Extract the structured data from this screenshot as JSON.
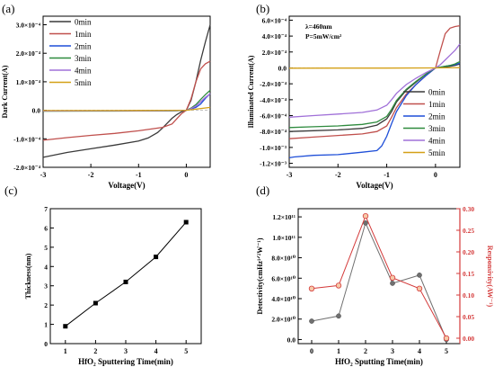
{
  "figure": {
    "panels": [
      {
        "id": "a",
        "panel_label": "(a)",
        "chart_data": {
          "type": "line",
          "title": "",
          "xlabel": "Voltage(V)",
          "ylabel": "Dark Current(A)",
          "xlim": [
            -3,
            0.5
          ],
          "ylim": [
            -0.0002,
            0.00033
          ],
          "x_ticks": [
            -3,
            -2,
            -1,
            0
          ],
          "x_tick_labels": [
            "-3",
            "-2",
            "-1",
            "0"
          ],
          "y_ticks": [
            -0.0002,
            -0.0001,
            0,
            0.0001,
            0.0002,
            0.0003
          ],
          "y_tick_labels": [
            "-2.0×10⁻⁴",
            "-1.0×10⁻⁴",
            "0.0",
            "1.0×10⁻⁴",
            "2.0×10⁻⁴",
            "3.0×10⁻⁴"
          ],
          "legend": {
            "placement": "top-center",
            "entries": [
              "0min",
              "1min",
              "2min",
              "3min",
              "4min",
              "5min"
            ]
          },
          "grid": false,
          "series": [
            {
              "name": "0min",
              "color": "#3a3a3a",
              "x": [
                -3,
                -2.5,
                -2,
                -1.5,
                -1,
                -0.8,
                -0.6,
                -0.5,
                -0.4,
                -0.3,
                -0.2,
                -0.1,
                0,
                0.1,
                0.2,
                0.3,
                0.4,
                0.5
              ],
              "y": [
                -0.000165,
                -0.000148,
                -0.000135,
                -0.000122,
                -0.000108,
                -9.7e-05,
                -7.8e-05,
                -6.2e-05,
                -4.5e-05,
                -2.8e-05,
                -1.5e-05,
                -5e-06,
                0,
                3.5e-05,
                0.0001,
                0.000175,
                0.00024,
                0.0003
              ]
            },
            {
              "name": "1min",
              "color": "#c0504d",
              "x": [
                -3,
                -2.5,
                -2,
                -1.5,
                -1,
                -0.5,
                -0.3,
                -0.2,
                -0.1,
                0,
                0.1,
                0.2,
                0.3,
                0.4,
                0.5
              ],
              "y": [
                -0.000105,
                -9.6e-05,
                -8.8e-05,
                -8.1e-05,
                -7.2e-05,
                -6e-05,
                -4.8e-05,
                -3e-05,
                -1.2e-05,
                0,
                4e-05,
                0.0001,
                0.000145,
                0.000163,
                0.000172
              ]
            },
            {
              "name": "2min",
              "color": "#1f4fd8",
              "x": [
                -3,
                -2,
                -1,
                -0.5,
                -0.2,
                0,
                0.1,
                0.2,
                0.3,
                0.4,
                0.5
              ],
              "y": [
                -2.5e-06,
                -2.2e-06,
                -2e-06,
                -1.8e-06,
                -1.2e-06,
                0,
                5e-06,
                1e-05,
                2.2e-05,
                4.2e-05,
                5.8e-05
              ]
            },
            {
              "name": "3min",
              "color": "#2e8b3e",
              "x": [
                -3,
                -2,
                -1,
                -0.5,
                -0.2,
                0,
                0.1,
                0.2,
                0.3,
                0.4,
                0.5
              ],
              "y": [
                -3e-06,
                -2.8e-06,
                -2.5e-06,
                -2e-06,
                -1.5e-06,
                0,
                8e-06,
                2e-05,
                3.8e-05,
                5.5e-05,
                7e-05
              ]
            },
            {
              "name": "4min",
              "color": "#a070d8",
              "x": [
                -3,
                -2,
                -1,
                -0.5,
                -0.2,
                0,
                0.1,
                0.2,
                0.3,
                0.4,
                0.5
              ],
              "y": [
                -2.5e-06,
                -2e-06,
                -1.8e-06,
                -1.5e-06,
                -1e-06,
                0,
                6e-06,
                1.5e-05,
                3e-05,
                4.5e-05,
                5.8e-05
              ]
            },
            {
              "name": "5min",
              "color": "#d4a017",
              "x": [
                -3,
                -2,
                -1,
                0,
                0.25,
                0.5
              ],
              "y": [
                -1e-06,
                -8e-07,
                -5e-07,
                0,
                5e-06,
                1e-05
              ]
            }
          ]
        }
      },
      {
        "id": "b",
        "panel_label": "(b)",
        "annotations": [
          "λ=460nm",
          "P=5mW/cm²"
        ],
        "chart_data": {
          "type": "line",
          "title": "",
          "xlabel": "Voltage(V)",
          "ylabel": "Illuminated Current(A)",
          "xlim": [
            -3,
            0.5
          ],
          "ylim": [
            -0.00125,
            0.00065
          ],
          "x_ticks": [
            -3,
            -2,
            -1,
            0
          ],
          "x_tick_labels": [
            "-3",
            "-2",
            "-1",
            "0"
          ],
          "y_ticks": [
            -0.0012,
            -0.001,
            -0.0008,
            -0.0006,
            -0.0004,
            -0.0002,
            0,
            0.0002,
            0.0004,
            0.0006
          ],
          "y_tick_labels": [
            "-1.2×10⁻³",
            "-1.0×10⁻³",
            "-8.0×10⁻⁴",
            "-6.0×10⁻⁴",
            "-4.0×10⁻⁴",
            "-2.0×10⁻⁴",
            "0.0",
            "2.0×10⁻⁴",
            "4.0×10⁻⁴",
            "6.0×10⁻⁴"
          ],
          "legend": {
            "placement": "bottom-right",
            "entries": [
              "0min",
              "1min",
              "2min",
              "3min",
              "4min",
              "5min"
            ]
          },
          "grid": false,
          "series": [
            {
              "name": "0min",
              "color": "#3a3a3a",
              "x": [
                -3,
                -2.5,
                -2,
                -1.5,
                -1.2,
                -1,
                -0.9,
                -0.8,
                -0.6,
                -0.4,
                -0.2,
                0,
                0.1,
                0.2,
                0.3,
                0.4,
                0.5
              ],
              "y": [
                -0.0008,
                -0.00079,
                -0.00078,
                -0.00076,
                -0.00072,
                -0.00064,
                -0.00055,
                -0.00043,
                -0.00028,
                -0.00018,
                -8e-05,
                0,
                5e-06,
                1e-05,
                2e-05,
                3e-05,
                5e-05
              ]
            },
            {
              "name": "1min",
              "color": "#c0504d",
              "x": [
                -3,
                -2.5,
                -2,
                -1.5,
                -1.2,
                -1,
                -0.9,
                -0.8,
                -0.6,
                -0.4,
                -0.2,
                0,
                0.1,
                0.2,
                0.3,
                0.4,
                0.5
              ],
              "y": [
                -0.00089,
                -0.00087,
                -0.00085,
                -0.00083,
                -0.0008,
                -0.00073,
                -0.00062,
                -0.0005,
                -0.00033,
                -0.00021,
                -0.0001,
                0,
                0.00022,
                0.00043,
                0.0005,
                0.00052,
                0.00053
              ]
            },
            {
              "name": "2min",
              "color": "#1f4fd8",
              "x": [
                -3,
                -2.9,
                -2.5,
                -2,
                -1.5,
                -1.2,
                -1.1,
                -1,
                -0.9,
                -0.8,
                -0.6,
                -0.4,
                -0.2,
                0,
                0.1,
                0.2,
                0.3,
                0.4,
                0.5
              ],
              "y": [
                -0.00113,
                -0.00112,
                -0.0011,
                -0.00109,
                -0.00106,
                -0.00104,
                -0.00098,
                -0.00086,
                -0.0007,
                -0.00055,
                -0.00035,
                -0.00021,
                -0.0001,
                0,
                1e-05,
                2e-05,
                3e-05,
                4e-05,
                6e-05
              ]
            },
            {
              "name": "3min",
              "color": "#2e8b3e",
              "x": [
                -3,
                -2.5,
                -2,
                -1.5,
                -1.2,
                -1,
                -0.9,
                -0.8,
                -0.6,
                -0.4,
                -0.2,
                0,
                0.1,
                0.2,
                0.3,
                0.4,
                0.5
              ],
              "y": [
                -0.00075,
                -0.00074,
                -0.00073,
                -0.00071,
                -0.00068,
                -0.00061,
                -0.00052,
                -0.00041,
                -0.00027,
                -0.00017,
                -8e-05,
                0,
                1e-05,
                2e-05,
                3e-05,
                5e-05,
                8e-05
              ]
            },
            {
              "name": "4min",
              "color": "#a070d8",
              "x": [
                -3,
                -2.5,
                -2,
                -1.5,
                -1.2,
                -1,
                -0.9,
                -0.8,
                -0.6,
                -0.4,
                -0.2,
                0,
                0.1,
                0.2,
                0.3,
                0.4,
                0.5
              ],
              "y": [
                -0.00062,
                -0.0006,
                -0.00058,
                -0.00056,
                -0.00053,
                -0.00047,
                -0.0004,
                -0.00032,
                -0.00021,
                -0.00013,
                -6e-05,
                0,
                4e-05,
                0.0001,
                0.00016,
                0.00022,
                0.0003
              ]
            },
            {
              "name": "5min",
              "color": "#d4a017",
              "x": [
                -3,
                -2,
                -1,
                0,
                0.5
              ],
              "y": [
                -4e-06,
                -3e-06,
                -2e-06,
                0,
                3e-06
              ]
            }
          ]
        }
      },
      {
        "id": "c",
        "panel_label": "(c)",
        "chart_data": {
          "type": "line",
          "title": "",
          "xlabel": "HfO₂ Sputtering Time(min)",
          "ylabel": "Thickness(nm)",
          "xlim": [
            0.5,
            5.5
          ],
          "ylim": [
            0,
            7
          ],
          "x_ticks": [
            1,
            2,
            3,
            4,
            5
          ],
          "x_tick_labels": [
            "1",
            "2",
            "3",
            "4",
            "5"
          ],
          "y_ticks": [
            0,
            1,
            2,
            3,
            4,
            5,
            6,
            7
          ],
          "y_tick_labels": [
            "0",
            "1",
            "2",
            "3",
            "4",
            "5",
            "6",
            "7"
          ],
          "grid": false,
          "series": [
            {
              "name": "",
              "color": "#000000",
              "marker": "square",
              "x": [
                1,
                2,
                3,
                4,
                5
              ],
              "y": [
                0.9,
                2.1,
                3.2,
                4.5,
                6.3
              ]
            }
          ]
        }
      },
      {
        "id": "d",
        "panel_label": "(d)",
        "chart_data": {
          "type": "line",
          "title": "",
          "xlabel": "HfO₂ Sputting Time(min)",
          "ylabel": "Detectivity(cmHz¹ᐟ²W⁻¹)",
          "ylabel_right": "Responsivity(AW⁻¹)",
          "xlim": [
            -0.5,
            5.5
          ],
          "ylim": [
            -4000000000.0,
            128000000000.0
          ],
          "ylim_right": [
            -0.0125,
            0.3
          ],
          "x_ticks": [
            0,
            1,
            2,
            3,
            4,
            5
          ],
          "x_tick_labels": [
            "0",
            "1",
            "2",
            "3",
            "4",
            "5"
          ],
          "y_ticks": [
            0,
            20000000000.0,
            40000000000.0,
            60000000000.0,
            80000000000.0,
            100000000000.0,
            120000000000.0
          ],
          "y_tick_labels": [
            "0.0",
            "2.0×10¹⁰",
            "4.0×10¹⁰",
            "6.0×10¹⁰",
            "8.0×10¹⁰",
            "1.0×10¹¹",
            "1.2×10¹¹"
          ],
          "y_right_ticks": [
            0,
            0.05,
            0.1,
            0.15,
            0.2,
            0.25,
            0.3
          ],
          "y_right_tick_labels": [
            "0.00",
            "0.05",
            "0.10",
            "0.15",
            "0.20",
            "0.25",
            "0.30"
          ],
          "right_axis_color": "#d43a3a",
          "grid": false,
          "series": [
            {
              "name": "",
              "axis": "left",
              "color": "#707070",
              "marker": "circle",
              "x": [
                0,
                1,
                2,
                3,
                4,
                5
              ],
              "y": [
                18000000000.0,
                23000000000.0,
                114000000000.0,
                55000000000.0,
                63000000000.0,
                0
              ]
            },
            {
              "name": "",
              "axis": "right",
              "color": "#d43a3a",
              "marker": "circle-open",
              "x": [
                0,
                1,
                2,
                3,
                4,
                5
              ],
              "y": [
                0.115,
                0.122,
                0.283,
                0.14,
                0.115,
                0.0
              ]
            }
          ]
        }
      }
    ]
  }
}
